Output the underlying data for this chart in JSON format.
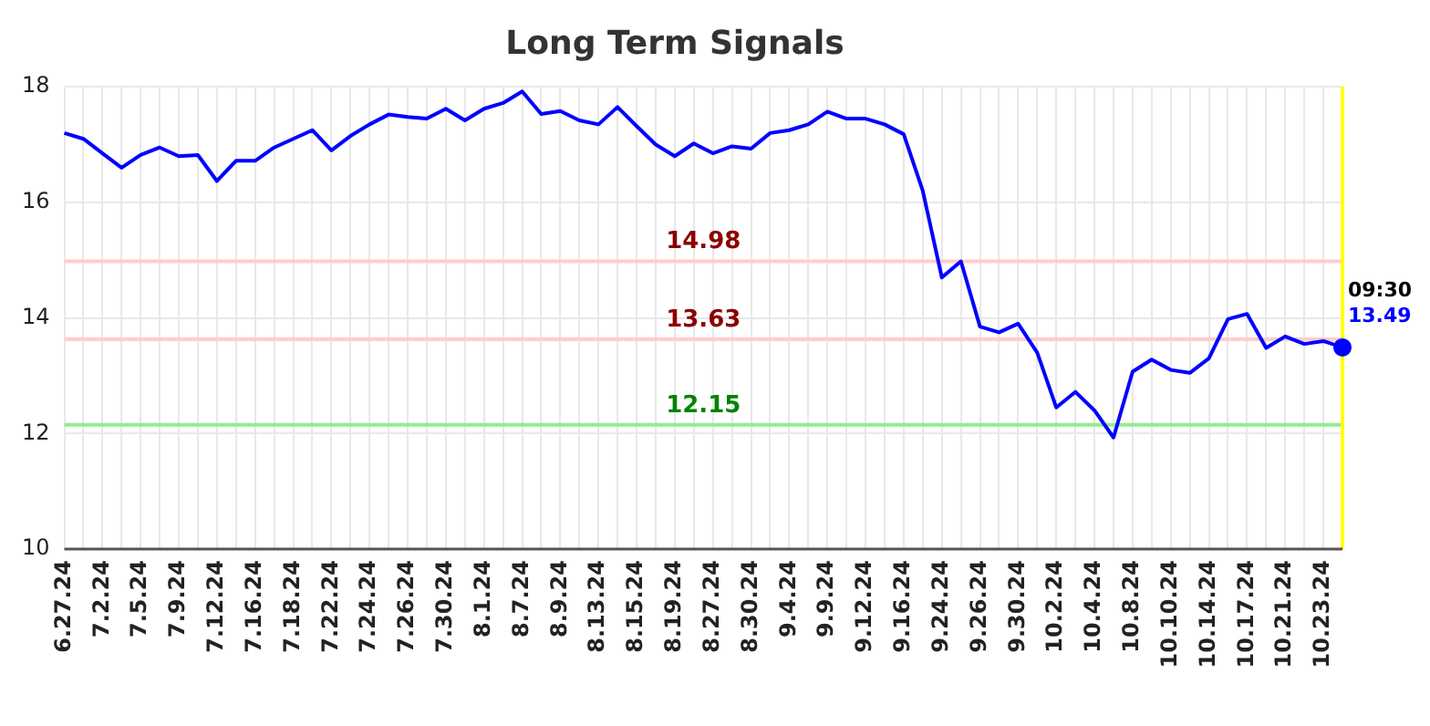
{
  "chart_data": {
    "type": "line",
    "title": "Long Term Signals",
    "categories": [
      "6.27.24",
      null,
      "7.2.24",
      null,
      "7.5.24",
      null,
      "7.9.24",
      null,
      "7.12.24",
      null,
      "7.16.24",
      null,
      "7.18.24",
      null,
      "7.22.24",
      null,
      "7.24.24",
      null,
      "7.26.24",
      null,
      "7.30.24",
      null,
      "8.1.24",
      null,
      "8.7.24",
      null,
      "8.9.24",
      null,
      "8.13.24",
      null,
      "8.15.24",
      null,
      "8.19.24",
      null,
      "8.27.24",
      null,
      "8.30.24",
      null,
      "9.4.24",
      null,
      "9.9.24",
      null,
      "9.12.24",
      null,
      "9.16.24",
      null,
      "9.24.24",
      null,
      "9.26.24",
      null,
      "9.30.24",
      null,
      "10.2.24",
      null,
      "10.4.24",
      null,
      "10.8.24",
      null,
      "10.10.24",
      null,
      "10.14.24",
      null,
      "10.17.24",
      null,
      "10.21.24",
      null,
      "10.23.24",
      null
    ],
    "series": [
      {
        "color": "#0000ff",
        "values": [
          17.2,
          17.1,
          16.85,
          16.6,
          16.82,
          16.95,
          16.8,
          16.82,
          16.37,
          16.72,
          16.72,
          16.95,
          17.1,
          17.25,
          16.9,
          17.15,
          17.35,
          17.52,
          17.48,
          17.45,
          17.62,
          17.42,
          17.62,
          17.72,
          17.92,
          17.53,
          17.58,
          17.42,
          17.35,
          17.65,
          17.32,
          17.0,
          16.8,
          17.02,
          16.85,
          16.97,
          16.93,
          17.2,
          17.25,
          17.35,
          17.57,
          17.45,
          17.45,
          17.35,
          17.18,
          16.2,
          14.7,
          14.98,
          13.85,
          13.75,
          13.9,
          13.4,
          12.45,
          12.72,
          12.4,
          11.93,
          13.07,
          13.28,
          13.1,
          13.05,
          13.3,
          13.98,
          14.07,
          13.48,
          13.68,
          13.55,
          13.6,
          13.49
        ],
        "value_labels": [
          null,
          null,
          null,
          null,
          null,
          null,
          null,
          null,
          null,
          null,
          null,
          null,
          null,
          null,
          null,
          null,
          null,
          null,
          null,
          null,
          null,
          null,
          null,
          null,
          null,
          null,
          null,
          null,
          null,
          null,
          null,
          null,
          null,
          null,
          null,
          null,
          null,
          null,
          null,
          null,
          null,
          null,
          null,
          null,
          null,
          null,
          null,
          null,
          null,
          null,
          null,
          null,
          null,
          null,
          null,
          null,
          null,
          null,
          null,
          null,
          null,
          null,
          null,
          null,
          null,
          null,
          null,
          "13.49"
        ]
      }
    ],
    "ylim": [
      10,
      18
    ],
    "yticks": [
      10,
      12,
      14,
      16,
      18
    ],
    "grid": true,
    "legend": false,
    "marker": "none",
    "line_style": "solid",
    "ref_lines": [
      {
        "axis": "y",
        "value": 14.98,
        "label": "14.98",
        "color": "#ffcccc"
      },
      {
        "axis": "y",
        "value": 13.63,
        "label": "13.63",
        "color": "#ffcccc"
      },
      {
        "axis": "y",
        "value": 12.15,
        "label": "12.15",
        "color": "#90ee90"
      }
    ],
    "annotations": [
      "09:30"
    ]
  }
}
